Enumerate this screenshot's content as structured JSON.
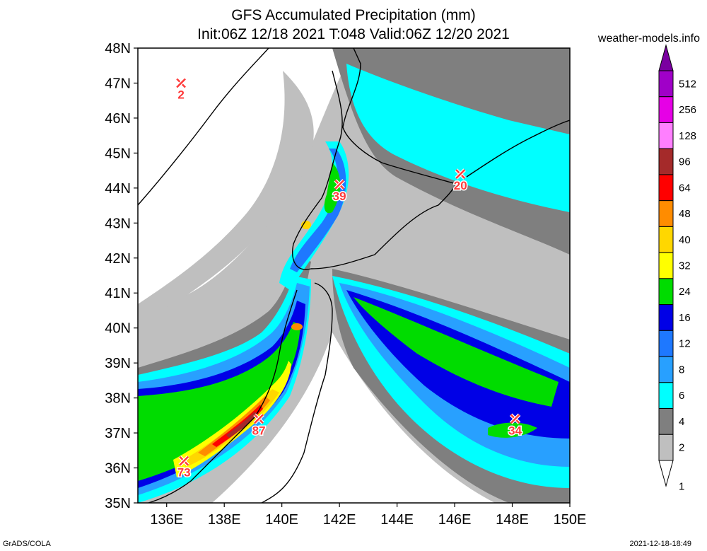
{
  "title": {
    "line1": "GFS Accumulated Precipitation (mm)",
    "line2": "Init:06Z 12/18 2021 T:048 Valid:06Z 12/20 2021"
  },
  "site_label": "weather-models.info",
  "footer": {
    "left": "GrADS/COLA",
    "right": "2021-12-18-18:49"
  },
  "map": {
    "lon_range": [
      135,
      150
    ],
    "lat_range": [
      35,
      48
    ],
    "lat_labels": [
      "48N",
      "47N",
      "46N",
      "45N",
      "44N",
      "43N",
      "42N",
      "41N",
      "40N",
      "39N",
      "38N",
      "37N",
      "36N",
      "35N"
    ],
    "lon_labels": [
      "136E",
      "138E",
      "140E",
      "142E",
      "144E",
      "146E",
      "148E",
      "150E"
    ]
  },
  "colorbar": {
    "levels": [
      "512",
      "256",
      "128",
      "96",
      "64",
      "48",
      "40",
      "32",
      "24",
      "16",
      "12",
      "8",
      "6",
      "4",
      "2",
      "1"
    ],
    "colors": [
      "#7a00a0",
      "#a000c8",
      "#e600e6",
      "#ff7fff",
      "#a52a2a",
      "#ff0000",
      "#ff8c00",
      "#ffd700",
      "#ffff00",
      "#00dc00",
      "#0000e6",
      "#1e78ff",
      "#28a0ff",
      "#00ffff",
      "#7f7f7f",
      "#bfbfbf",
      "#ffffff"
    ]
  },
  "stations": [
    {
      "lon": 136.5,
      "lat": 47.0,
      "value": "2"
    },
    {
      "lon": 142.0,
      "lat": 44.1,
      "value": "39"
    },
    {
      "lon": 146.2,
      "lat": 44.4,
      "value": "20"
    },
    {
      "lon": 139.2,
      "lat": 37.4,
      "value": "87"
    },
    {
      "lon": 136.6,
      "lat": 36.2,
      "value": "73"
    },
    {
      "lon": 148.1,
      "lat": 37.4,
      "value": "34"
    }
  ]
}
